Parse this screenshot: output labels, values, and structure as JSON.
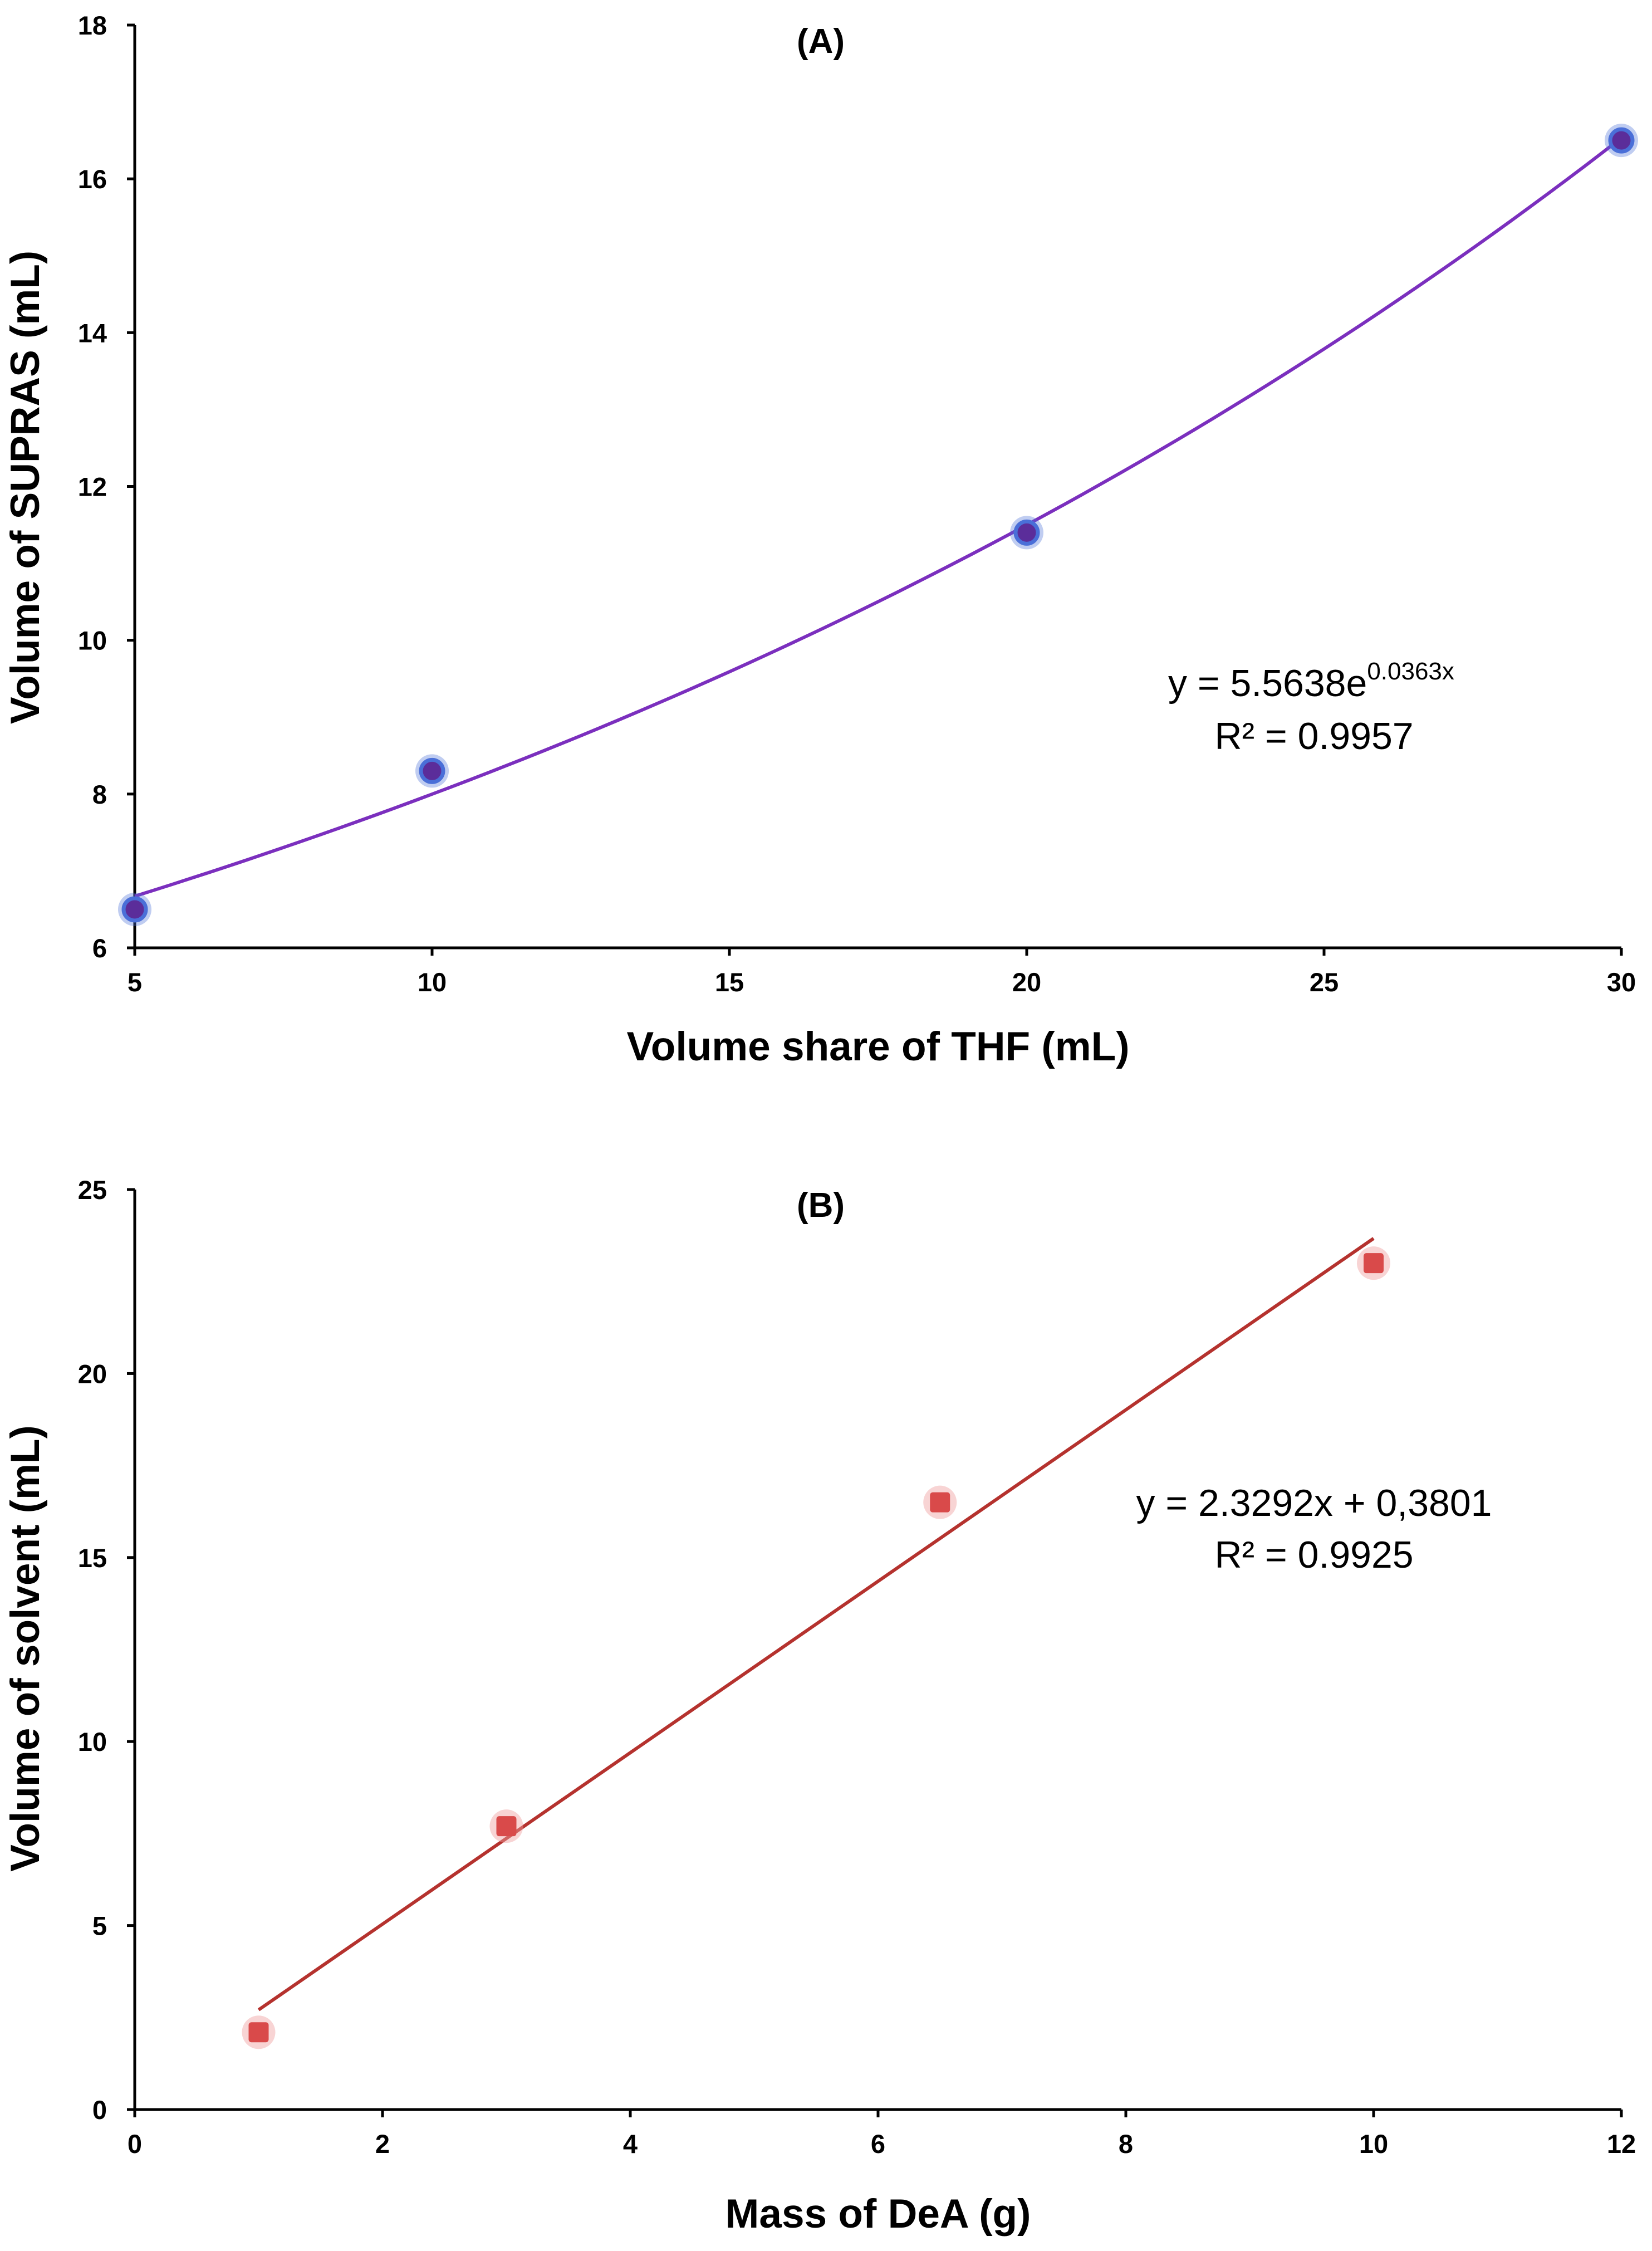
{
  "chart_data": [
    {
      "type": "scatter",
      "panel_label": "(A)",
      "xlabel": "Volume share of THF (mL)",
      "ylabel": "Volume of SUPRAS (mL)",
      "xlim": [
        5,
        30
      ],
      "ylim": [
        6,
        18
      ],
      "xticks": [
        5,
        10,
        15,
        20,
        25,
        30
      ],
      "yticks": [
        6,
        8,
        10,
        12,
        14,
        16,
        18
      ],
      "series": [
        {
          "name": "SUPRAS volume",
          "x": [
            5,
            10,
            20,
            30
          ],
          "y": [
            6.5,
            8.3,
            11.4,
            16.5
          ],
          "marker_color": "#5b2d9a",
          "marker_edge": "#4a6fd8"
        }
      ],
      "trendline": {
        "kind": "exponential",
        "a": 5.5638,
        "b": 0.0363,
        "x_range": [
          5,
          30
        ],
        "color": "#7b2fbe"
      },
      "equation": {
        "prefix": "y = 5.5638e",
        "exponent": "0.0363x",
        "r2": "R² = 0.9957"
      }
    },
    {
      "type": "scatter",
      "panel_label": "(B)",
      "xlabel": "Mass of DeA (g)",
      "ylabel": "Volume of solvent (mL)",
      "xlim": [
        0,
        12
      ],
      "ylim": [
        0,
        25
      ],
      "xticks": [
        0,
        2,
        4,
        6,
        8,
        10,
        12
      ],
      "yticks": [
        0,
        5,
        10,
        15,
        20,
        25
      ],
      "series": [
        {
          "name": "Solvent volume",
          "x": [
            1,
            3,
            6.5,
            10
          ],
          "y": [
            2.1,
            7.7,
            16.5,
            23.0
          ],
          "marker_color": "#d94a4a",
          "marker_edge": "#f0a0a0"
        }
      ],
      "trendline": {
        "kind": "linear",
        "slope": 2.3292,
        "intercept": 0.3801,
        "x_range": [
          1,
          10
        ],
        "color": "#b5322e"
      },
      "equation": {
        "line": "y = 2.3292x + 0,3801",
        "r2": "R² = 0.9925"
      }
    }
  ]
}
